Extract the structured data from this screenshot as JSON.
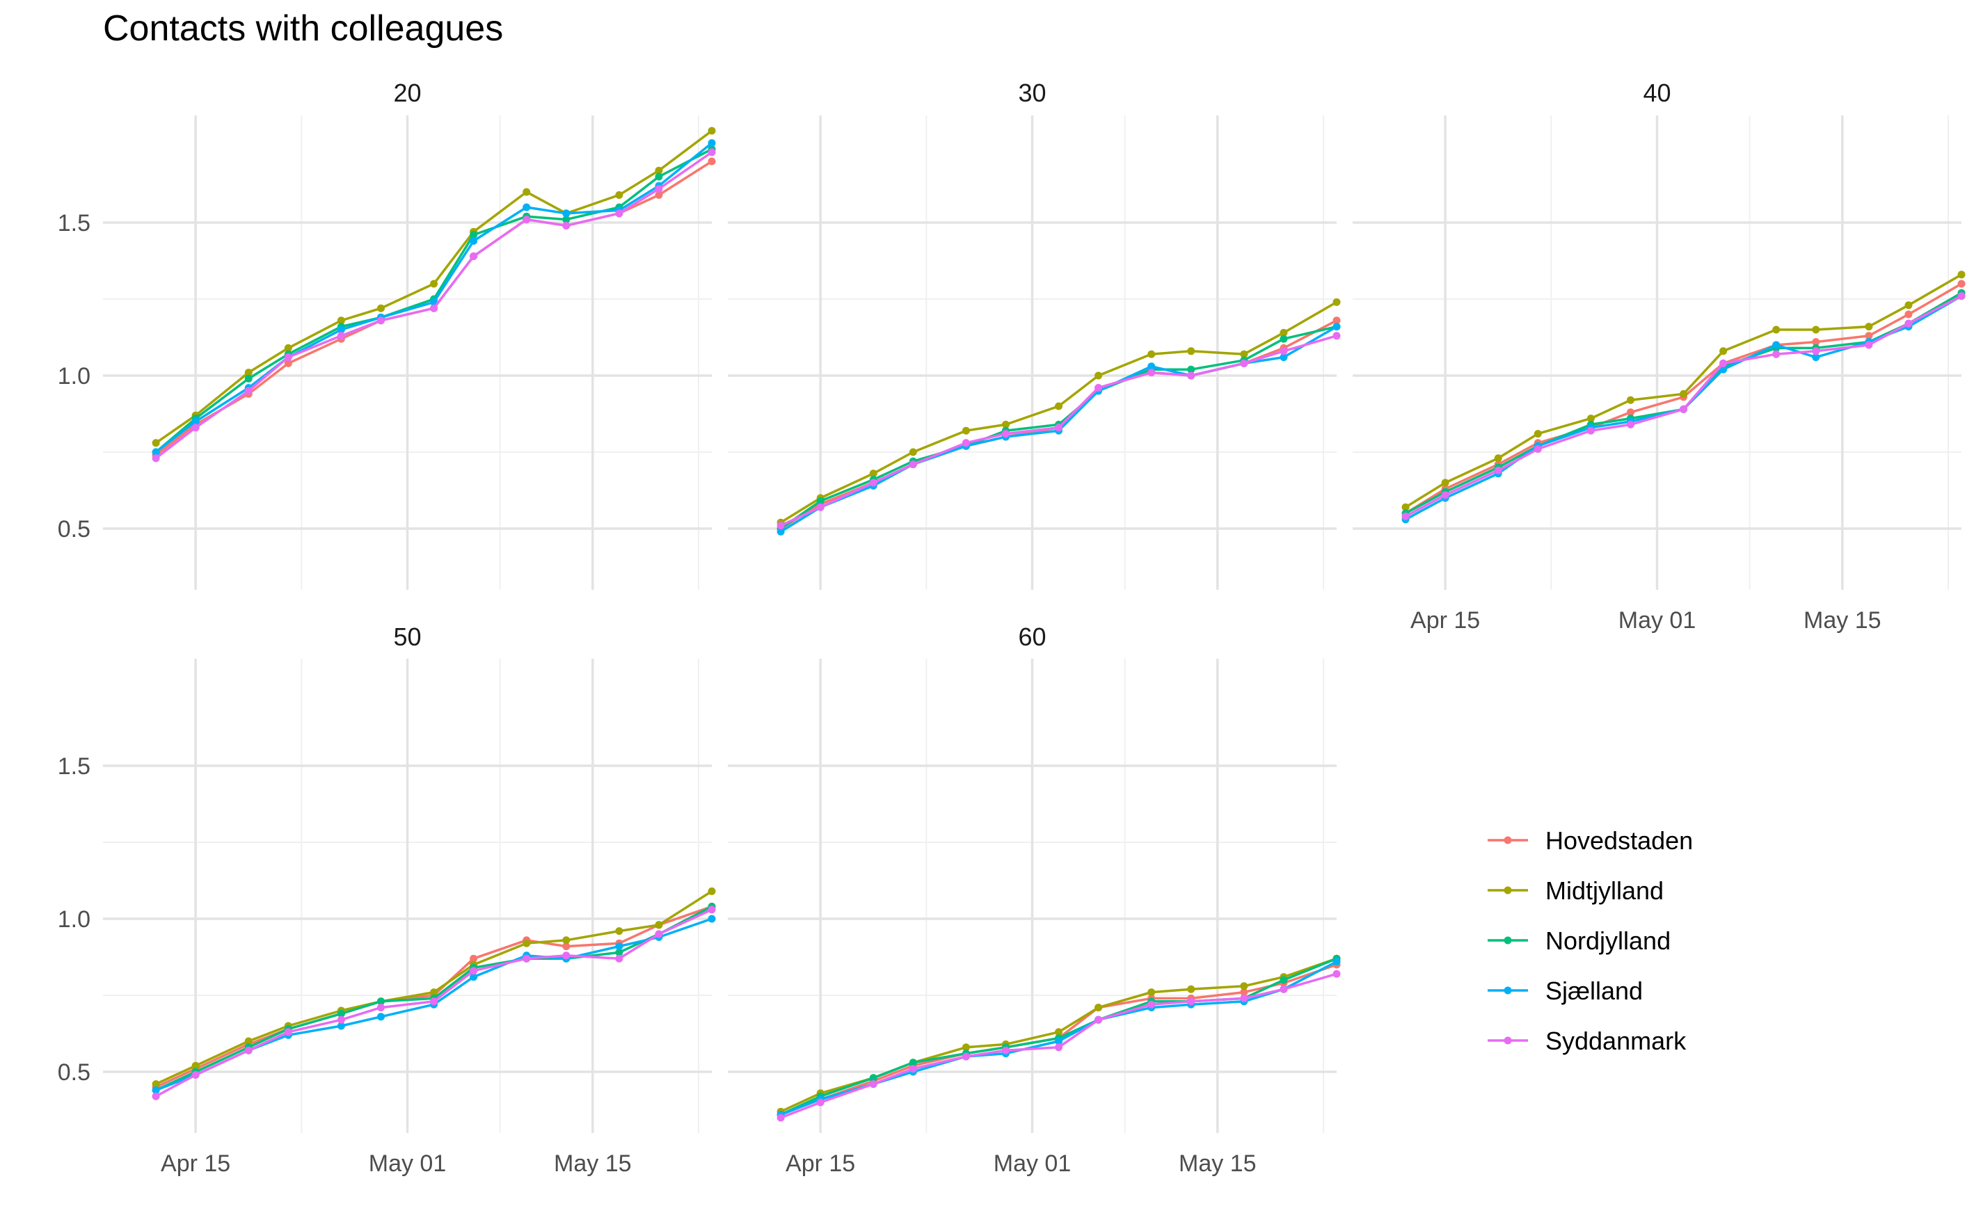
{
  "chart_data": {
    "type": "line",
    "title": "Contacts with colleagues",
    "xlabel": "",
    "ylabel": "",
    "facet_variable": "age",
    "grid": true,
    "legend_position": "right",
    "x_tick_labels": [
      {
        "date": "2020-04-15",
        "label": "Apr 15"
      },
      {
        "date": "2020-05-01",
        "label": "May 01"
      },
      {
        "date": "2020-05-15",
        "label": "May 15"
      }
    ],
    "y_ticks": [
      0.5,
      1.0,
      1.5
    ],
    "y_tick_labels": [
      "0.5",
      "1.0",
      "1.5"
    ],
    "ylim": [
      0.3,
      1.85
    ],
    "xlim": [
      "2020-04-08",
      "2020-05-24"
    ],
    "x": [
      "2020-04-12",
      "2020-04-15",
      "2020-04-19",
      "2020-04-22",
      "2020-04-26",
      "2020-04-29",
      "2020-05-03",
      "2020-05-06",
      "2020-05-10",
      "2020-05-13",
      "2020-05-17",
      "2020-05-20",
      "2020-05-24"
    ],
    "series_colors": {
      "Hovedstaden": "#F8766D",
      "Midtjylland": "#A3A500",
      "Nordjylland": "#00BF7D",
      "Sjælland": "#00B0F6",
      "Syddanmark": "#E76BF3"
    },
    "panels": [
      {
        "label": "20",
        "series": [
          {
            "name": "Hovedstaden",
            "values": [
              0.74,
              0.84,
              0.94,
              1.04,
              1.12,
              1.18,
              1.22,
              1.39,
              1.51,
              1.49,
              1.53,
              1.59,
              1.7
            ]
          },
          {
            "name": "Midtjylland",
            "values": [
              0.78,
              0.87,
              1.01,
              1.09,
              1.18,
              1.22,
              1.3,
              1.47,
              1.6,
              1.53,
              1.59,
              1.67,
              1.8
            ]
          },
          {
            "name": "Nordjylland",
            "values": [
              0.75,
              0.86,
              0.99,
              1.07,
              1.16,
              1.19,
              1.25,
              1.46,
              1.52,
              1.51,
              1.55,
              1.65,
              1.74
            ]
          },
          {
            "name": "Sjælland",
            "values": [
              0.75,
              0.85,
              0.96,
              1.06,
              1.15,
              1.19,
              1.24,
              1.44,
              1.55,
              1.53,
              1.54,
              1.62,
              1.76
            ]
          },
          {
            "name": "Syddanmark",
            "values": [
              0.73,
              0.83,
              0.95,
              1.06,
              1.13,
              1.18,
              1.22,
              1.39,
              1.51,
              1.49,
              1.53,
              1.61,
              1.73
            ]
          }
        ]
      },
      {
        "label": "30",
        "series": [
          {
            "name": "Hovedstaden",
            "values": [
              0.5,
              0.58,
              0.65,
              0.71,
              0.77,
              0.8,
              0.83,
              0.96,
              1.01,
              1.0,
              1.04,
              1.09,
              1.18
            ]
          },
          {
            "name": "Midtjylland",
            "values": [
              0.52,
              0.6,
              0.68,
              0.75,
              0.82,
              0.84,
              0.9,
              1.0,
              1.07,
              1.08,
              1.07,
              1.14,
              1.24
            ]
          },
          {
            "name": "Nordjylland",
            "values": [
              0.5,
              0.59,
              0.66,
              0.72,
              0.77,
              0.82,
              0.84,
              0.95,
              1.02,
              1.02,
              1.05,
              1.12,
              1.16
            ]
          },
          {
            "name": "Sjælland",
            "values": [
              0.49,
              0.57,
              0.64,
              0.71,
              0.77,
              0.8,
              0.82,
              0.95,
              1.03,
              1.0,
              1.04,
              1.06,
              1.16
            ]
          },
          {
            "name": "Syddanmark",
            "values": [
              0.51,
              0.57,
              0.65,
              0.71,
              0.78,
              0.81,
              0.83,
              0.96,
              1.01,
              1.0,
              1.04,
              1.08,
              1.13
            ]
          }
        ]
      },
      {
        "label": "40",
        "series": [
          {
            "name": "Hovedstaden",
            "values": [
              0.55,
              0.63,
              0.71,
              0.78,
              0.83,
              0.88,
              0.93,
              1.04,
              1.1,
              1.11,
              1.13,
              1.2,
              1.3
            ]
          },
          {
            "name": "Midtjylland",
            "values": [
              0.57,
              0.65,
              0.73,
              0.81,
              0.86,
              0.92,
              0.94,
              1.08,
              1.15,
              1.15,
              1.16,
              1.23,
              1.33
            ]
          },
          {
            "name": "Nordjylland",
            "values": [
              0.55,
              0.62,
              0.7,
              0.77,
              0.84,
              0.86,
              0.89,
              1.03,
              1.09,
              1.09,
              1.11,
              1.17,
              1.27
            ]
          },
          {
            "name": "Sjælland",
            "values": [
              0.53,
              0.6,
              0.68,
              0.77,
              0.83,
              0.85,
              0.89,
              1.02,
              1.1,
              1.06,
              1.11,
              1.16,
              1.26
            ]
          },
          {
            "name": "Syddanmark",
            "values": [
              0.54,
              0.61,
              0.69,
              0.76,
              0.82,
              0.84,
              0.89,
              1.04,
              1.07,
              1.08,
              1.1,
              1.17,
              1.26
            ]
          }
        ]
      },
      {
        "label": "50",
        "series": [
          {
            "name": "Hovedstaden",
            "values": [
              0.45,
              0.51,
              0.59,
              0.64,
              0.69,
              0.73,
              0.75,
              0.87,
              0.93,
              0.91,
              0.92,
              0.98,
              1.04
            ]
          },
          {
            "name": "Midtjylland",
            "values": [
              0.46,
              0.52,
              0.6,
              0.65,
              0.7,
              0.73,
              0.76,
              0.85,
              0.92,
              0.93,
              0.96,
              0.98,
              1.09
            ]
          },
          {
            "name": "Nordjylland",
            "values": [
              0.44,
              0.5,
              0.58,
              0.64,
              0.69,
              0.73,
              0.74,
              0.84,
              0.87,
              0.87,
              0.89,
              0.95,
              1.04
            ]
          },
          {
            "name": "Sjælland",
            "values": [
              0.44,
              0.49,
              0.57,
              0.62,
              0.65,
              0.68,
              0.72,
              0.81,
              0.88,
              0.87,
              0.91,
              0.94,
              1.0
            ]
          },
          {
            "name": "Syddanmark",
            "values": [
              0.42,
              0.49,
              0.57,
              0.63,
              0.67,
              0.71,
              0.73,
              0.83,
              0.87,
              0.88,
              0.87,
              0.95,
              1.03
            ]
          }
        ]
      },
      {
        "label": "60",
        "series": [
          {
            "name": "Hovedstaden",
            "values": [
              0.36,
              0.41,
              0.47,
              0.52,
              0.56,
              0.58,
              0.61,
              0.71,
              0.74,
              0.74,
              0.76,
              0.79,
              0.85
            ]
          },
          {
            "name": "Midtjylland",
            "values": [
              0.37,
              0.43,
              0.48,
              0.53,
              0.58,
              0.59,
              0.63,
              0.71,
              0.76,
              0.77,
              0.78,
              0.81,
              0.87
            ]
          },
          {
            "name": "Nordjylland",
            "values": [
              0.36,
              0.42,
              0.48,
              0.53,
              0.56,
              0.58,
              0.61,
              0.67,
              0.73,
              0.73,
              0.74,
              0.8,
              0.87
            ]
          },
          {
            "name": "Sjælland",
            "values": [
              0.36,
              0.41,
              0.46,
              0.5,
              0.55,
              0.56,
              0.6,
              0.67,
              0.71,
              0.72,
              0.73,
              0.77,
              0.86
            ]
          },
          {
            "name": "Syddanmark",
            "values": [
              0.35,
              0.4,
              0.46,
              0.51,
              0.55,
              0.57,
              0.58,
              0.67,
              0.72,
              0.73,
              0.74,
              0.77,
              0.82
            ]
          }
        ]
      }
    ]
  }
}
